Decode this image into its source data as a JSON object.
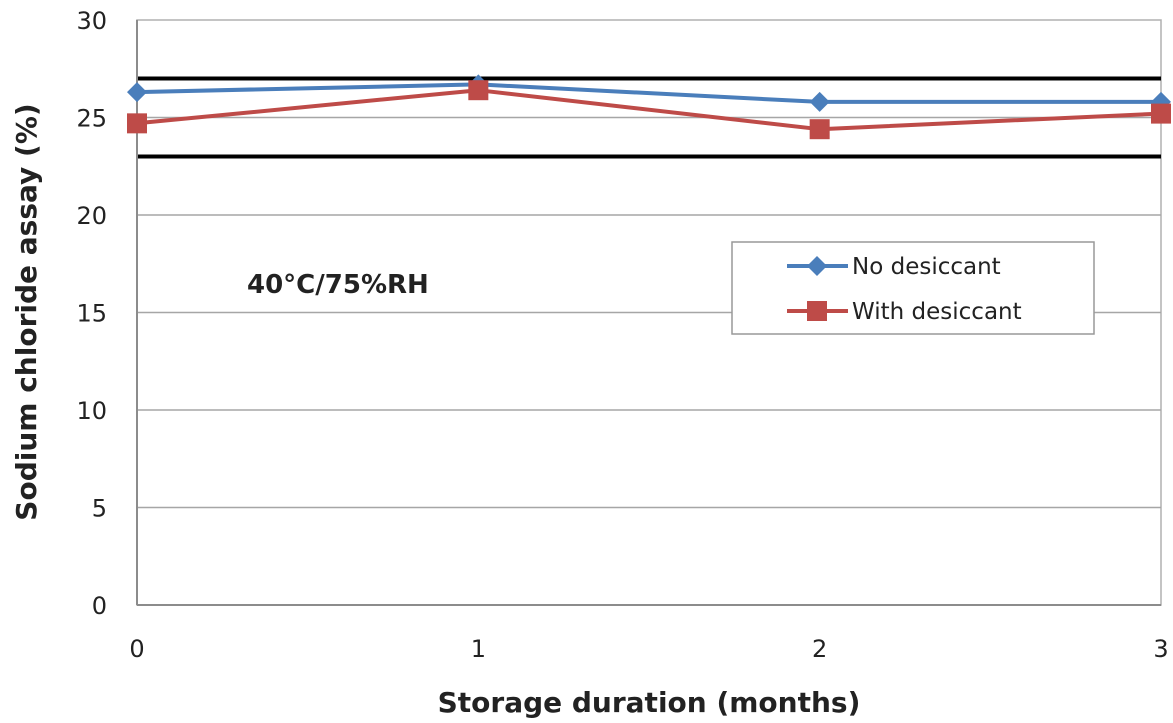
{
  "chart_data": {
    "type": "line",
    "title": "",
    "xlabel": "Storage duration (months)",
    "ylabel": "Sodium chloride assay (%)",
    "x": [
      0,
      1,
      2,
      3
    ],
    "x_ticks": [
      "0",
      "1",
      "2",
      "3"
    ],
    "xlim": [
      0,
      3
    ],
    "ylim": [
      0,
      30
    ],
    "y_ticks": [
      "0",
      "5",
      "10",
      "15",
      "20",
      "25",
      "30"
    ],
    "grid": "horizontal",
    "reference_lines": [
      23,
      27
    ],
    "annotation": "40°C/75%RH",
    "legend": "center-right",
    "series": [
      {
        "name": "No desiccant",
        "values": [
          26.3,
          26.7,
          25.8,
          25.8
        ],
        "color": "#4a7ebb",
        "marker": "diamond"
      },
      {
        "name": "With desiccant",
        "values": [
          24.7,
          26.4,
          24.4,
          25.2
        ],
        "color": "#be4b48",
        "marker": "square"
      }
    ]
  }
}
